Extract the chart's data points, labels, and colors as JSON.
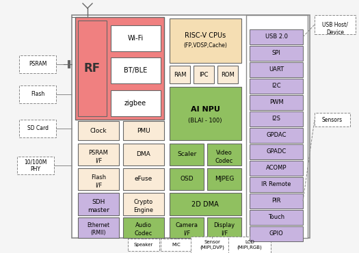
{
  "bg_color": "#f5f5f5",
  "colors": {
    "red_pink": "#f08080",
    "peach": "#f5deb3",
    "peach2": "#faebd7",
    "green": "#90c060",
    "purple": "#c8b4e0",
    "white": "#ffffff",
    "border": "#666666",
    "dashed_border": "#888888"
  },
  "right_items": [
    "USB 2.0",
    "SPI",
    "UART",
    "I2C",
    "PWM",
    "I2S",
    "GPDAC",
    "GPADC",
    "ACOMP",
    "IR Remote",
    "PIR",
    "Touch",
    "GPIO"
  ]
}
